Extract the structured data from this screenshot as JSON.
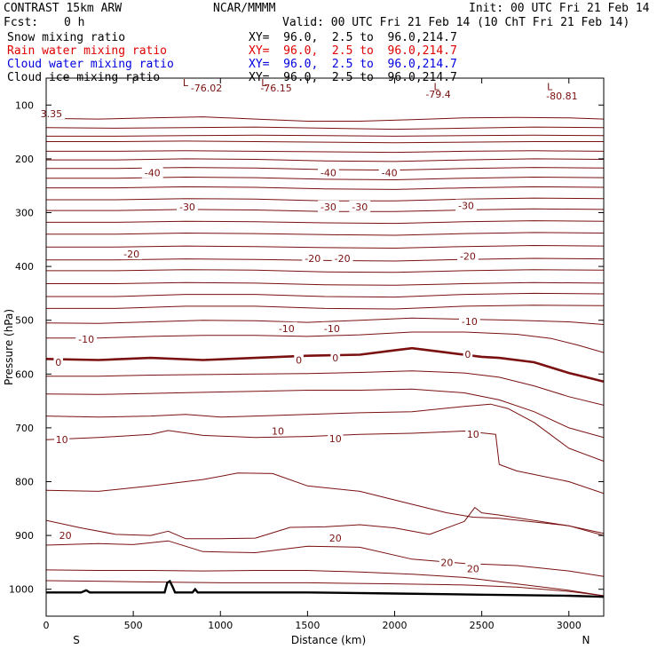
{
  "header": {
    "title": "CONTRAST 15km ARW",
    "org": "NCAR/MMMM",
    "init": "Init: 00 UTC Fri 21 Feb 14",
    "fcst_label": "Fcst:",
    "fcst_value": "0 h",
    "valid": "Valid: 00 UTC Fri 21 Feb 14 (10 ChT Fri 21 Feb 14)"
  },
  "fields": [
    {
      "name": "Snow mixing ratio",
      "xy": "XY=  96.0,  2.5 to  96.0,214.7",
      "color": "#000000"
    },
    {
      "name": "Rain water mixing ratio",
      "xy": "XY=  96.0,  2.5 to  96.0,214.7",
      "color": "#e00000"
    },
    {
      "name": "Cloud water mixing ratio",
      "xy": "XY=  96.0,  2.5 to  96.0,214.7",
      "color": "#0000e0"
    },
    {
      "name": "Cloud ice mixing ratio",
      "xy": "XY=  96.0,  2.5 to  96.0,214.7",
      "color": "#000000"
    }
  ],
  "colors": {
    "contour": "#7a1010",
    "terrain": "#000000"
  },
  "chart_data": {
    "type": "line",
    "xlabel": "Distance (km)",
    "ylabel": "Pressure (hPa)",
    "xlim": [
      0,
      3200
    ],
    "ylim": [
      1050,
      50
    ],
    "x_ticks": [
      0,
      500,
      1000,
      1500,
      2000,
      2500,
      3000
    ],
    "y_ticks": [
      100,
      200,
      300,
      400,
      500,
      600,
      700,
      800,
      900,
      1000
    ],
    "x_end_labels": {
      "left": "S",
      "right": "N"
    },
    "interval": 10,
    "lines": [
      {
        "x": [
          0,
          300,
          600,
          900,
          1200,
          1500,
          1800,
          2100,
          2400,
          2700,
          3000,
          3200
        ],
        "y": [
          125,
          126,
          124,
          122,
          126,
          130,
          130,
          127,
          124,
          123,
          124,
          126
        ]
      },
      {
        "x": [
          0,
          400,
          800,
          1200,
          1600,
          2000,
          2400,
          2800,
          3200
        ],
        "y": [
          142,
          143,
          142,
          141,
          143,
          145,
          143,
          141,
          142
        ]
      },
      {
        "x": [
          0,
          400,
          800,
          1200,
          1600,
          2000,
          2400,
          2800,
          3200
        ],
        "y": [
          158,
          158,
          157,
          156,
          157,
          158,
          157,
          156,
          157
        ]
      },
      {
        "x": [
          0,
          400,
          800,
          1200,
          1600,
          2000,
          2400,
          2800,
          3200
        ],
        "y": [
          168,
          168,
          167,
          168,
          169,
          170,
          169,
          168,
          168
        ]
      },
      {
        "x": [
          0,
          400,
          800,
          1200,
          1600,
          2000,
          2400,
          2800,
          3200
        ],
        "y": [
          186,
          186,
          185,
          186,
          187,
          188,
          186,
          185,
          186
        ]
      },
      {
        "x": [
          0,
          400,
          800,
          1200,
          1600,
          2000,
          2400,
          2800,
          3200
        ],
        "y": [
          202,
          202,
          200,
          201,
          204,
          205,
          202,
          200,
          201
        ]
      },
      {
        "x": [
          0,
          400,
          800,
          1200,
          1600,
          2000,
          2400,
          2800,
          3200
        ],
        "y": [
          218,
          218,
          216,
          217,
          220,
          221,
          218,
          216,
          217
        ]
      },
      {
        "x": [
          0,
          400,
          800,
          1200,
          1600,
          2000,
          2400,
          2800,
          3200
        ],
        "y": [
          236,
          236,
          234,
          235,
          238,
          239,
          236,
          234,
          235
        ]
      },
      {
        "x": [
          0,
          400,
          800,
          1200,
          1600,
          2000,
          2400,
          2800,
          3200
        ],
        "y": [
          254,
          254,
          252,
          253,
          256,
          257,
          254,
          252,
          253
        ]
      },
      {
        "x": [
          0,
          400,
          800,
          1200,
          1600,
          2000,
          2400,
          2800,
          3200
        ],
        "y": [
          276,
          276,
          274,
          275,
          278,
          278,
          275,
          273,
          274
        ]
      },
      {
        "x": [
          0,
          400,
          800,
          1200,
          1600,
          2000,
          2400,
          2800,
          3200
        ],
        "y": [
          296,
          296,
          294,
          295,
          298,
          298,
          295,
          293,
          294
        ]
      },
      {
        "x": [
          0,
          400,
          800,
          1200,
          1600,
          2000,
          2400,
          2800,
          3200
        ],
        "y": [
          318,
          318,
          316,
          317,
          319,
          320,
          317,
          315,
          316
        ]
      },
      {
        "x": [
          0,
          400,
          800,
          1200,
          1600,
          2000,
          2400,
          2800,
          3200
        ],
        "y": [
          340,
          340,
          338,
          339,
          341,
          342,
          339,
          337,
          338
        ]
      },
      {
        "x": [
          0,
          400,
          800,
          1200,
          1600,
          2000,
          2400,
          2800,
          3200
        ],
        "y": [
          364,
          364,
          362,
          363,
          365,
          366,
          363,
          361,
          362
        ]
      },
      {
        "x": [
          0,
          400,
          800,
          1200,
          1600,
          2000,
          2400,
          2800,
          3200
        ],
        "y": [
          388,
          388,
          386,
          387,
          389,
          390,
          387,
          385,
          386
        ]
      },
      {
        "x": [
          0,
          400,
          800,
          1200,
          1600,
          2000,
          2400,
          2800,
          3200
        ],
        "y": [
          408,
          408,
          406,
          407,
          410,
          411,
          408,
          406,
          407
        ]
      },
      {
        "x": [
          0,
          400,
          800,
          1200,
          1600,
          2000,
          2400,
          2800,
          3200
        ],
        "y": [
          432,
          432,
          430,
          431,
          434,
          435,
          432,
          430,
          431
        ]
      },
      {
        "x": [
          0,
          400,
          800,
          1200,
          1600,
          2000,
          2400,
          2800,
          3200
        ],
        "y": [
          456,
          456,
          452,
          452,
          456,
          457,
          452,
          450,
          451
        ]
      },
      {
        "x": [
          0,
          400,
          800,
          1200,
          1600,
          2000,
          2400,
          2800,
          3200
        ],
        "y": [
          478,
          478,
          474,
          474,
          478,
          479,
          474,
          472,
          473
        ]
      },
      {
        "x": [
          0,
          300,
          600,
          900,
          1200,
          1500,
          1800,
          2100,
          2400,
          2700,
          3000,
          3200
        ],
        "y": [
          505,
          506,
          503,
          500,
          501,
          504,
          500,
          496,
          498,
          500,
          503,
          508
        ]
      },
      {
        "x": [
          0,
          300,
          600,
          900,
          1200,
          1500,
          1800,
          2100,
          2400,
          2700,
          2900,
          3050,
          3200
        ],
        "y": [
          533,
          533,
          530,
          528,
          528,
          530,
          527,
          522,
          522,
          526,
          534,
          546,
          560
        ]
      },
      {
        "x": [
          0,
          300,
          600,
          900,
          1200,
          1500,
          1800,
          2000,
          2100,
          2300,
          2500,
          2600,
          2800,
          3000,
          3100,
          3200
        ],
        "y": [
          572,
          574,
          570,
          574,
          570,
          566,
          564,
          556,
          552,
          560,
          568,
          570,
          578,
          598,
          606,
          614
        ]
      },
      {
        "x": [
          0,
          300,
          600,
          900,
          1200,
          1500,
          1800,
          2100,
          2400,
          2600,
          2800,
          3000,
          3200
        ],
        "y": [
          604,
          604,
          602,
          601,
          600,
          599,
          597,
          594,
          598,
          606,
          622,
          642,
          658
        ]
      },
      {
        "x": [
          0,
          300,
          600,
          900,
          1200,
          1500,
          1800,
          2100,
          2400,
          2600,
          2800,
          3000,
          3200
        ],
        "y": [
          637,
          638,
          636,
          634,
          632,
          630,
          630,
          628,
          635,
          648,
          670,
          700,
          718
        ]
      },
      {
        "x": [
          0,
          300,
          600,
          800,
          1000,
          1200,
          1500,
          1800,
          2100,
          2400,
          2550,
          2650,
          2800,
          3000,
          3200
        ],
        "y": [
          678,
          680,
          678,
          675,
          680,
          678,
          675,
          672,
          670,
          660,
          656,
          664,
          690,
          738,
          762
        ]
      },
      {
        "x": [
          0,
          300,
          600,
          700,
          900,
          1200,
          1500,
          1800,
          2100,
          2400,
          2580,
          2600,
          2700,
          3000,
          3200
        ],
        "y": [
          722,
          718,
          712,
          705,
          714,
          718,
          716,
          712,
          710,
          706,
          712,
          768,
          780,
          800,
          822
        ]
      },
      {
        "x": [
          0,
          300,
          600,
          900,
          1100,
          1300,
          1500,
          1800,
          2100,
          2300,
          2450,
          2600,
          3000,
          3200
        ],
        "y": [
          816,
          818,
          808,
          796,
          784,
          785,
          808,
          818,
          842,
          858,
          866,
          868,
          882,
          896
        ]
      },
      {
        "x": [
          0,
          200,
          400,
          600,
          700,
          800,
          1000,
          1200,
          1400,
          1600,
          1800,
          2000,
          2200,
          2400,
          2460,
          2500,
          2600,
          3000,
          3200
        ],
        "y": [
          872,
          886,
          898,
          900,
          892,
          906,
          906,
          905,
          885,
          884,
          880,
          886,
          898,
          874,
          848,
          858,
          862,
          882,
          900
        ]
      },
      {
        "x": [
          0,
          300,
          500,
          700,
          900,
          1200,
          1500,
          1800,
          2100,
          2400,
          2700,
          3000,
          3200
        ],
        "y": [
          918,
          915,
          917,
          910,
          930,
          932,
          920,
          922,
          944,
          952,
          956,
          966,
          976
        ]
      },
      {
        "x": [
          0,
          300,
          600,
          900,
          1200,
          1500,
          1800,
          2100,
          2400,
          2700,
          3000,
          3200
        ],
        "y": [
          964,
          965,
          965,
          966,
          965,
          965,
          968,
          972,
          978,
          990,
          1002,
          1012
        ]
      },
      {
        "x": [
          0,
          500,
          1000,
          1500,
          2000,
          2400,
          2700,
          3000,
          3200
        ],
        "y": [
          984,
          986,
          988,
          988,
          990,
          992,
          996,
          1004,
          1012
        ]
      }
    ],
    "bold_line_index": 21,
    "terrain": {
      "x": [
        0,
        200,
        230,
        250,
        280,
        500,
        680,
        695,
        710,
        725,
        740,
        800,
        840,
        855,
        870,
        900,
        1000,
        1500,
        2000,
        2500,
        3000,
        3200
      ],
      "y": [
        1006,
        1006,
        1002,
        1006,
        1006,
        1006,
        1006,
        988,
        985,
        995,
        1006,
        1006,
        1006,
        1000,
        1006,
        1006,
        1006,
        1006,
        1008,
        1010,
        1012,
        1014
      ]
    },
    "labels": [
      {
        "text": "-76.02",
        "x": 920,
        "y": 68
      },
      {
        "text": "-76.15",
        "x": 1320,
        "y": 68
      },
      {
        "text": "-79.4",
        "x": 2250,
        "y": 80
      },
      {
        "text": "-80.81",
        "x": 2960,
        "y": 83
      },
      {
        "text": "3.35",
        "x": 30,
        "y": 116
      },
      {
        "text": "-40",
        "x": 610,
        "y": 226
      },
      {
        "text": "-40",
        "x": 1620,
        "y": 226
      },
      {
        "text": "-40",
        "x": 1970,
        "y": 226
      },
      {
        "text": "-30",
        "x": 810,
        "y": 289
      },
      {
        "text": "-30",
        "x": 1620,
        "y": 289
      },
      {
        "text": "-30",
        "x": 1800,
        "y": 289
      },
      {
        "text": "-30",
        "x": 2410,
        "y": 287
      },
      {
        "text": "-20",
        "x": 490,
        "y": 377
      },
      {
        "text": "-20",
        "x": 1530,
        "y": 385
      },
      {
        "text": "-20",
        "x": 1700,
        "y": 385
      },
      {
        "text": "-20",
        "x": 2420,
        "y": 381
      },
      {
        "text": "-10",
        "x": 230,
        "y": 535
      },
      {
        "text": "-10",
        "x": 1380,
        "y": 515
      },
      {
        "text": "-10",
        "x": 1640,
        "y": 515
      },
      {
        "text": "-10",
        "x": 2430,
        "y": 502
      },
      {
        "text": "0",
        "x": 70,
        "y": 578
      },
      {
        "text": "0",
        "x": 1450,
        "y": 574
      },
      {
        "text": "0",
        "x": 1660,
        "y": 570
      },
      {
        "text": "0",
        "x": 2420,
        "y": 563
      },
      {
        "text": "10",
        "x": 90,
        "y": 722
      },
      {
        "text": "10",
        "x": 1330,
        "y": 706
      },
      {
        "text": "10",
        "x": 1660,
        "y": 720
      },
      {
        "text": "10",
        "x": 2450,
        "y": 712
      },
      {
        "text": "20",
        "x": 110,
        "y": 900
      },
      {
        "text": "20",
        "x": 1660,
        "y": 905
      },
      {
        "text": "20",
        "x": 2300,
        "y": 950
      },
      {
        "text": "20",
        "x": 2450,
        "y": 962
      }
    ],
    "lows": [
      {
        "text": "L",
        "x": 800,
        "y": 58
      },
      {
        "text": "L",
        "x": 1250,
        "y": 58
      },
      {
        "text": "L",
        "x": 2240,
        "y": 66
      },
      {
        "text": "L",
        "x": 2890,
        "y": 66
      }
    ]
  }
}
